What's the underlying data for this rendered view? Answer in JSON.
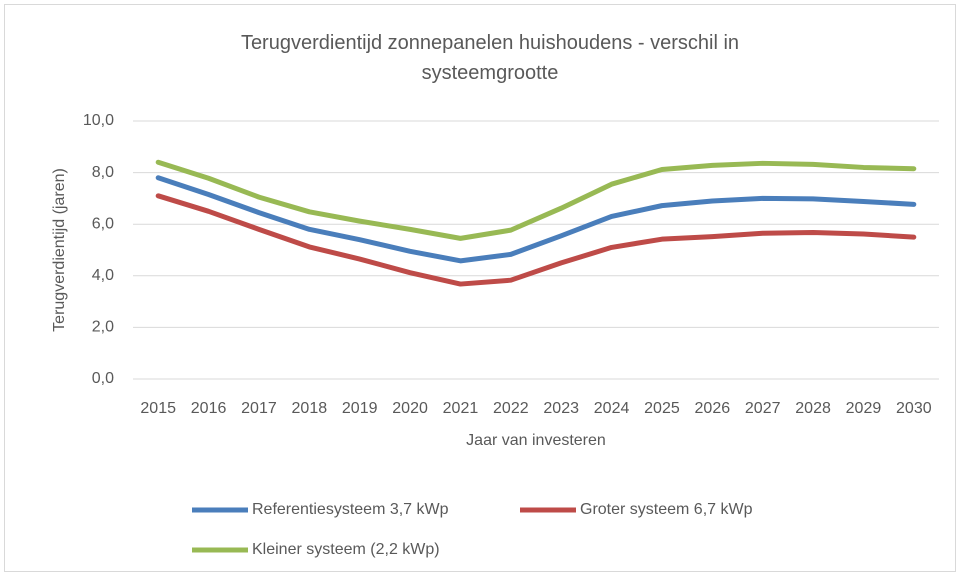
{
  "chart_data": {
    "type": "line",
    "title": "Terugverdientijd zonnepanelen huishoudens - verschil in systeemgrootte",
    "xlabel": "Jaar van investeren",
    "ylabel": "Terugverdientijd (jaren)",
    "categories": [
      "2015",
      "2016",
      "2017",
      "2018",
      "2019",
      "2020",
      "2021",
      "2022",
      "2023",
      "2024",
      "2025",
      "2026",
      "2027",
      "2028",
      "2029",
      "2030"
    ],
    "series": [
      {
        "name": "Referentiesysteem 3,7 kWp",
        "color": "#4a7ebb",
        "values": [
          7.8,
          7.15,
          6.45,
          5.8,
          5.4,
          4.95,
          4.58,
          4.83,
          5.55,
          6.3,
          6.72,
          6.9,
          7.0,
          6.98,
          6.88,
          6.77
        ]
      },
      {
        "name": "Groter systeem 6,7 kWp",
        "color": "#be4b48",
        "values": [
          7.1,
          6.5,
          5.8,
          5.12,
          4.65,
          4.12,
          3.68,
          3.83,
          4.5,
          5.1,
          5.42,
          5.52,
          5.65,
          5.68,
          5.62,
          5.5
        ]
      },
      {
        "name": "Kleiner systeem (2,2 kWp)",
        "color": "#98b954",
        "values": [
          8.4,
          7.78,
          7.05,
          6.48,
          6.12,
          5.8,
          5.45,
          5.77,
          6.62,
          7.55,
          8.12,
          8.28,
          8.36,
          8.32,
          8.2,
          8.15
        ]
      }
    ],
    "ylim": [
      0,
      10
    ],
    "yticks": [
      {
        "value": 0,
        "label": "0,0"
      },
      {
        "value": 2,
        "label": "2,0"
      },
      {
        "value": 4,
        "label": "4,0"
      },
      {
        "value": 6,
        "label": "6,0"
      },
      {
        "value": 8,
        "label": "8,0"
      },
      {
        "value": 10,
        "label": "10,0"
      }
    ],
    "grid": true,
    "legend": "bottom"
  }
}
